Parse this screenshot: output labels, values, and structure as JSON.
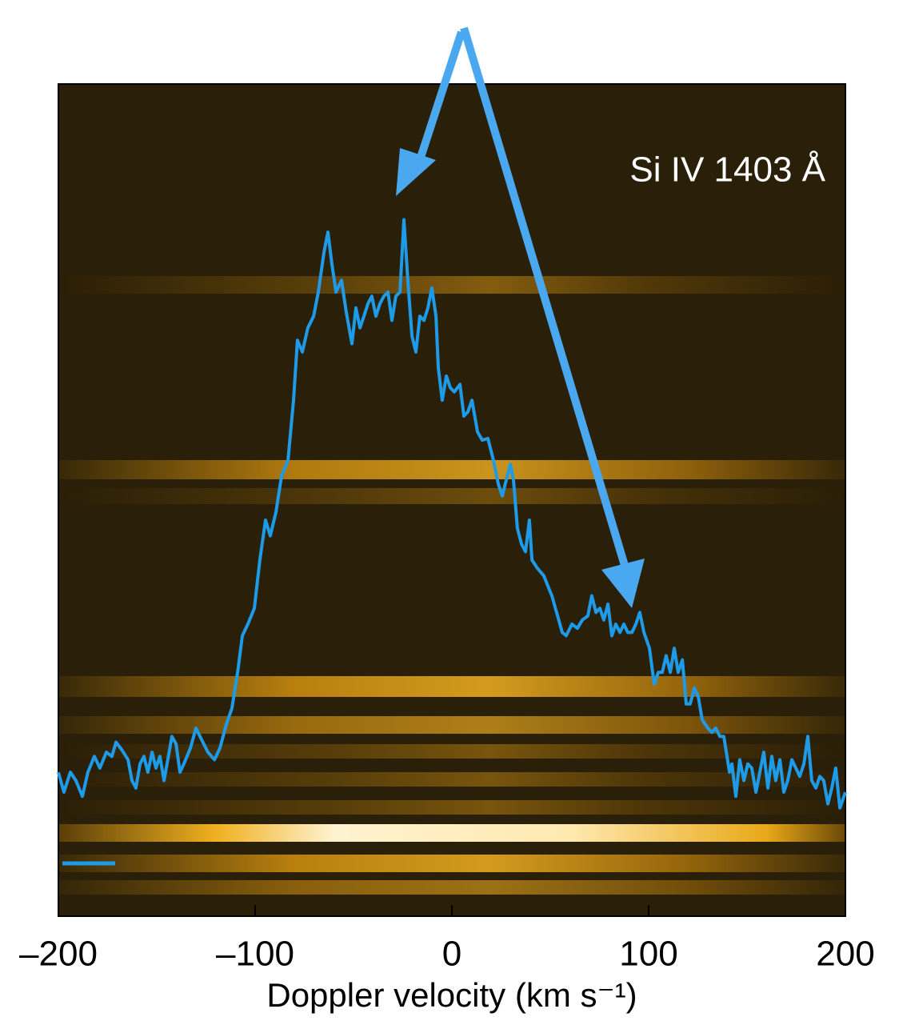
{
  "chart_data": {
    "type": "line",
    "xlabel": "Doppler velocity (km s⁻¹)",
    "annotation": "Si IV 1403 Å",
    "xlim": [
      -200,
      200
    ],
    "xticks": [
      {
        "value": -200,
        "label": "–200"
      },
      {
        "value": -100,
        "label": "–100"
      },
      0,
      100,
      200
    ],
    "ylim": [
      0,
      1
    ],
    "x": [
      -200,
      -197.2,
      -193.9,
      -191.1,
      -187.8,
      -185,
      -181.7,
      -178.9,
      -175.6,
      -172.8,
      -170.7,
      -167.5,
      -164.6,
      -162.6,
      -160.6,
      -158.5,
      -156.5,
      -154.5,
      -152.4,
      -150.4,
      -148.4,
      -146.3,
      -144.3,
      -142.3,
      -140.2,
      -138.2,
      -136.2,
      -132.9,
      -130.1,
      -127.2,
      -124,
      -120.7,
      -117.9,
      -114.6,
      -111.8,
      -108.9,
      -106.5,
      -103.7,
      -100.4,
      -97.6,
      -94.7,
      -92.3,
      -89.4,
      -86.6,
      -83.3,
      -80.5,
      -78.5,
      -76,
      -73.2,
      -70.3,
      -67.9,
      -65,
      -63,
      -61,
      -58.9,
      -56.1,
      -53.7,
      -50.8,
      -48.8,
      -46.7,
      -44.7,
      -42.7,
      -40.7,
      -38.6,
      -36.6,
      -34.6,
      -32.5,
      -30.5,
      -28.5,
      -26.4,
      -24.4,
      -22.4,
      -20.3,
      -18.3,
      -16.3,
      -14.2,
      -12.2,
      -10.2,
      -8.1,
      -6.9,
      -4.9,
      -2.8,
      -0.8,
      1.2,
      4.1,
      6.1,
      8.1,
      10.2,
      13,
      15.4,
      18.3,
      21.1,
      23.6,
      25.6,
      27.6,
      29.7,
      31.3,
      33.3,
      35.4,
      37.4,
      39.4,
      40.7,
      43.5,
      46.7,
      50.8,
      53.7,
      56.1,
      58.1,
      61,
      63.8,
      66.3,
      69.1,
      71.1,
      73.2,
      75.2,
      77.2,
      79.3,
      81.3,
      83.3,
      85.4,
      87.4,
      89.4,
      91.5,
      93.5,
      95.5,
      97.6,
      100.4,
      102.8,
      104.9,
      106.9,
      108.9,
      111,
      113,
      115,
      117.1,
      119.1,
      121.1,
      123.2,
      125.2,
      127.2,
      130.1,
      132.1,
      134.1,
      136.2,
      138.2,
      141.1,
      142.3,
      144.3,
      146.3,
      148.4,
      150.4,
      152.4,
      154.5,
      156.5,
      158.5,
      160.6,
      162.6,
      164.6,
      166.7,
      168.7,
      170.7,
      172.8,
      174.8,
      176.8,
      178.9,
      180.9,
      182.9,
      185,
      187,
      189,
      191.1,
      193.1,
      195.1,
      197.2,
      200
    ],
    "series": [
      {
        "color": "#1e9be8",
        "values": [
          0.173,
          0.149,
          0.173,
          0.163,
          0.144,
          0.173,
          0.192,
          0.178,
          0.197,
          0.192,
          0.209,
          0.199,
          0.188,
          0.163,
          0.154,
          0.183,
          0.192,
          0.173,
          0.197,
          0.178,
          0.192,
          0.163,
          0.189,
          0.216,
          0.207,
          0.173,
          0.183,
          0.202,
          0.226,
          0.212,
          0.197,
          0.188,
          0.202,
          0.231,
          0.25,
          0.293,
          0.337,
          0.351,
          0.37,
          0.428,
          0.476,
          0.457,
          0.486,
          0.529,
          0.548,
          0.62,
          0.692,
          0.678,
          0.707,
          0.721,
          0.75,
          0.798,
          0.822,
          0.784,
          0.75,
          0.764,
          0.726,
          0.688,
          0.731,
          0.707,
          0.721,
          0.736,
          0.745,
          0.721,
          0.736,
          0.745,
          0.75,
          0.716,
          0.745,
          0.75,
          0.837,
          0.764,
          0.697,
          0.678,
          0.721,
          0.716,
          0.731,
          0.755,
          0.721,
          0.659,
          0.62,
          0.649,
          0.635,
          0.63,
          0.639,
          0.601,
          0.606,
          0.62,
          0.582,
          0.572,
          0.574,
          0.548,
          0.519,
          0.505,
          0.524,
          0.543,
          0.524,
          0.466,
          0.447,
          0.438,
          0.476,
          0.428,
          0.418,
          0.409,
          0.385,
          0.361,
          0.341,
          0.337,
          0.351,
          0.346,
          0.356,
          0.361,
          0.385,
          0.365,
          0.37,
          0.356,
          0.375,
          0.337,
          0.351,
          0.341,
          0.351,
          0.341,
          0.341,
          0.351,
          0.365,
          0.341,
          0.322,
          0.279,
          0.293,
          0.293,
          0.313,
          0.293,
          0.322,
          0.293,
          0.308,
          0.255,
          0.255,
          0.274,
          0.264,
          0.236,
          0.226,
          0.221,
          0.226,
          0.216,
          0.216,
          0.173,
          0.183,
          0.144,
          0.188,
          0.163,
          0.183,
          0.178,
          0.149,
          0.173,
          0.197,
          0.154,
          0.192,
          0.163,
          0.188,
          0.149,
          0.163,
          0.188,
          0.178,
          0.168,
          0.183,
          0.216,
          0.163,
          0.154,
          0.168,
          0.163,
          0.135,
          0.154,
          0.178,
          0.13,
          0.149
        ]
      }
    ]
  }
}
